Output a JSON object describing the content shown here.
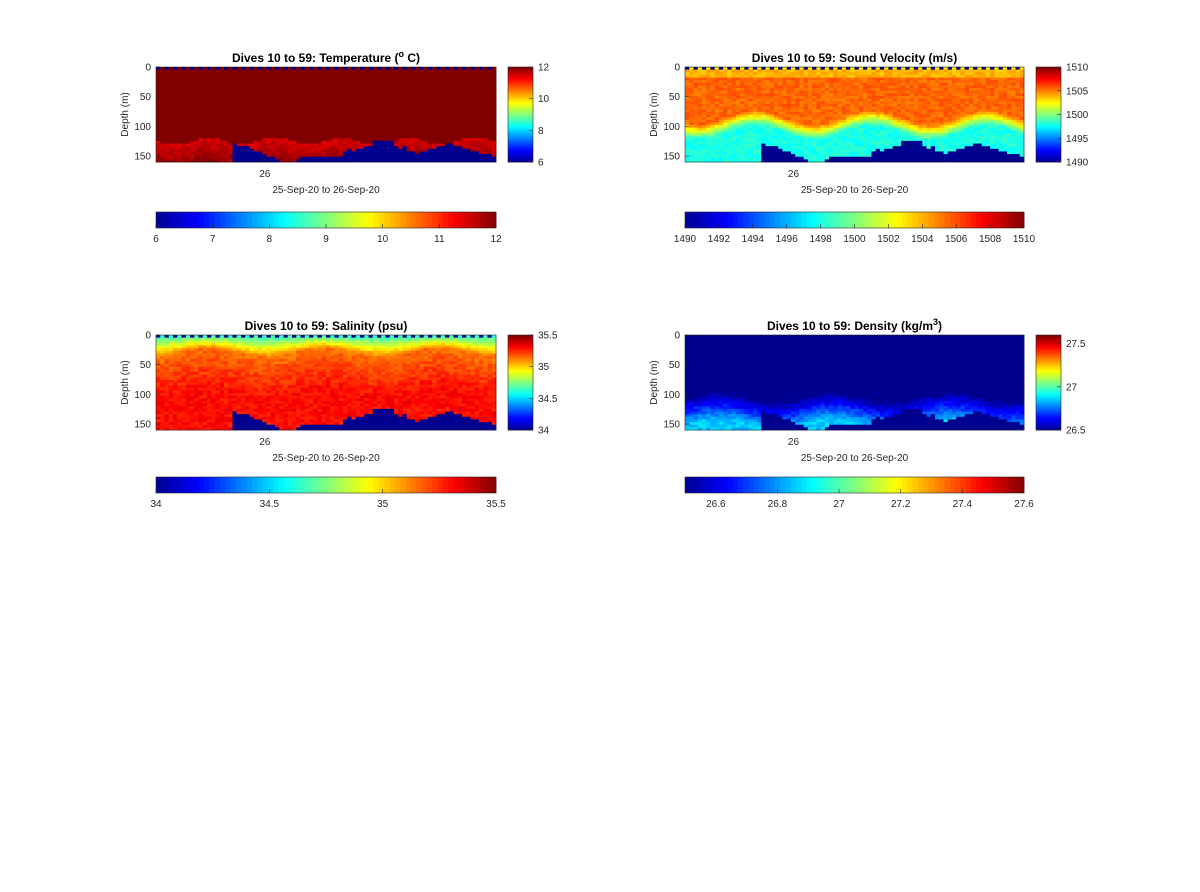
{
  "figure": {
    "background": "#ffffff"
  },
  "colormap": {
    "name": "jet",
    "stops": [
      "#00008f",
      "#0000ff",
      "#0080ff",
      "#00ffff",
      "#80ff80",
      "#ffff00",
      "#ff8000",
      "#ff0000",
      "#800000"
    ]
  },
  "chart_data": [
    {
      "type": "heatmap",
      "title": "Dives 10 to 59: Temperature (",
      "title_sup": "o",
      "title_tail": " C)",
      "xlabel": "25-Sep-20 to 26-Sep-20",
      "ylabel": "Depth (m)",
      "x_ticks": [
        "26"
      ],
      "y_ticks": [
        "0",
        "50",
        "100",
        "150"
      ],
      "ylim": [
        0,
        160
      ],
      "clim": [
        6,
        12
      ],
      "right_colorbar_ticks": [
        "6",
        "8",
        "10",
        "12"
      ],
      "bottom_colorbar_ticks": [
        "6",
        "7",
        "8",
        "9",
        "10",
        "11",
        "12"
      ],
      "surface_value": 12,
      "bottom_value": 11.5,
      "deep_layer_top": 125,
      "deep_layer_top_variation": 6
    },
    {
      "type": "heatmap",
      "title": "Dives 10 to 59: Sound Velocity (m/s)",
      "xlabel": "25-Sep-20 to 26-Sep-20",
      "ylabel": "Depth (m)",
      "x_ticks": [
        "26"
      ],
      "y_ticks": [
        "0",
        "50",
        "100",
        "150"
      ],
      "ylim": [
        0,
        160
      ],
      "clim": [
        1490,
        1510
      ],
      "right_colorbar_ticks": [
        "1490",
        "1495",
        "1500",
        "1505",
        "1510"
      ],
      "bottom_colorbar_ticks": [
        "1490",
        "1492",
        "1494",
        "1496",
        "1498",
        "1500",
        "1502",
        "1504",
        "1506",
        "1508",
        "1510"
      ],
      "surface_value": 1503,
      "mid_value": 1505.5,
      "bottom_value": 1498,
      "transition_depth": 85,
      "transition_variation": 12
    },
    {
      "type": "heatmap",
      "title": "Dives 10 to 59: Salinity (psu)",
      "xlabel": "25-Sep-20 to 26-Sep-20",
      "ylabel": "Depth (m)",
      "x_ticks": [
        "26"
      ],
      "y_ticks": [
        "0",
        "50",
        "100",
        "150"
      ],
      "ylim": [
        0,
        160
      ],
      "clim": [
        34,
        35.5
      ],
      "right_colorbar_ticks": [
        "34",
        "34.5",
        "35",
        "35.5"
      ],
      "bottom_colorbar_ticks": [
        "34",
        "34.5",
        "35",
        "35.5"
      ],
      "surface_value": 34.6,
      "mid_value": 35.15,
      "bottom_value": 35.3,
      "transition_depth": 30,
      "transition_variation": 8
    },
    {
      "type": "heatmap",
      "title": "Dives 10 to 59: Density (kg/m",
      "title_sup": "3",
      "title_tail": ")",
      "xlabel": "25-Sep-20 to 26-Sep-20",
      "ylabel": "Depth (m)",
      "x_ticks": [
        "26"
      ],
      "y_ticks": [
        "0",
        "50",
        "100",
        "150"
      ],
      "ylim": [
        0,
        160
      ],
      "clim": [
        26.5,
        27.6
      ],
      "right_colorbar_ticks": [
        "26.5",
        "27",
        "27.5"
      ],
      "bottom_colorbar_ticks": [
        "26.6",
        "26.8",
        "27",
        "27.2",
        "27.4",
        "27.6"
      ],
      "surface_value": 26.5,
      "bottom_value": 26.85,
      "transition_depth": 105,
      "transition_variation": 8
    }
  ]
}
